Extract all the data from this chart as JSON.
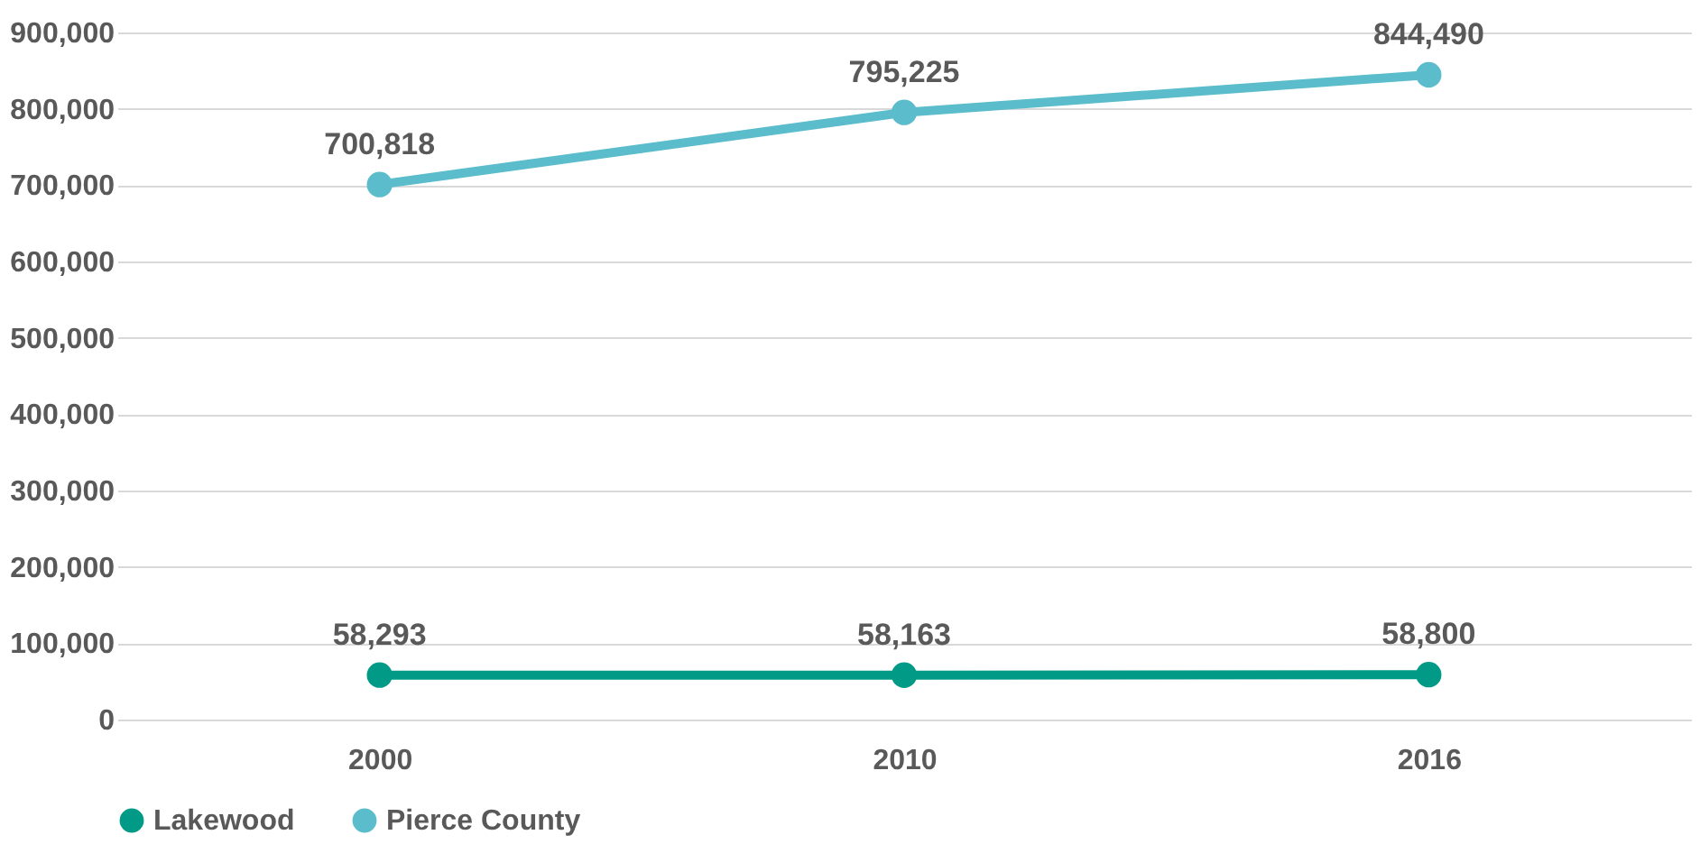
{
  "chart_data": {
    "type": "line",
    "categories": [
      "2000",
      "2010",
      "2016"
    ],
    "series": [
      {
        "name": "Lakewood",
        "color": "#009a86",
        "values": [
          58293,
          58163,
          58800
        ],
        "value_labels": [
          "58,293",
          "58,163",
          "58,800"
        ]
      },
      {
        "name": "Pierce County",
        "color": "#5bbdcc",
        "values": [
          700818,
          795225,
          844490
        ],
        "value_labels": [
          "700,818",
          "795,225",
          "844,490"
        ]
      }
    ],
    "ylim": [
      0,
      900000
    ],
    "yticks": [
      {
        "value": 0,
        "label": "0"
      },
      {
        "value": 100000,
        "label": "100,000"
      },
      {
        "value": 200000,
        "label": "200,000"
      },
      {
        "value": 300000,
        "label": "300,000"
      },
      {
        "value": 400000,
        "label": "400,000"
      },
      {
        "value": 500000,
        "label": "500,000"
      },
      {
        "value": 600000,
        "label": "600,000"
      },
      {
        "value": 700000,
        "label": "700,000"
      },
      {
        "value": 800000,
        "label": "800,000"
      },
      {
        "value": 900000,
        "label": "900,000"
      }
    ],
    "grid": "y",
    "legend": "bottom",
    "marker": "circle",
    "line_style": "solid"
  }
}
